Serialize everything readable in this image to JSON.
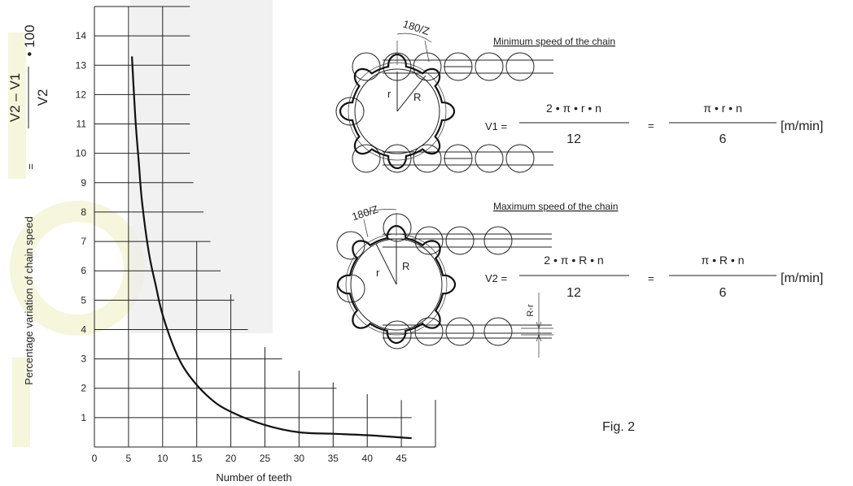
{
  "chart_data": {
    "type": "line",
    "xlabel": "Number of teeth",
    "ylabel": "Percentage variation of chain speed",
    "x_ticks": [
      0,
      5,
      10,
      15,
      20,
      25,
      30,
      35,
      40,
      45
    ],
    "y_ticks": [
      1,
      2,
      3,
      4,
      5,
      6,
      7,
      8,
      9,
      10,
      11,
      13,
      14
    ],
    "y_tick_labels_present": [
      1,
      2,
      3,
      4,
      5,
      6,
      7,
      8,
      9,
      10,
      11,
      12,
      13,
      14
    ],
    "xlim": [
      0,
      50
    ],
    "ylim": [
      0,
      15
    ],
    "grid": true,
    "series": [
      {
        "x": [
          5.5,
          6,
          6.5,
          7,
          8,
          9,
          10,
          12,
          14,
          17,
          20,
          25,
          30,
          35,
          40,
          46.5
        ],
        "y": [
          13.3,
          11.2,
          9.7,
          8.3,
          6.6,
          5.5,
          4.5,
          3.2,
          2.4,
          1.65,
          1.2,
          0.75,
          0.5,
          0.45,
          0.4,
          0.3
        ]
      }
    ]
  },
  "ylabel_formula": {
    "numerator": "V2  –  V1",
    "denominator": "V2",
    "multiplier": "• 100",
    "equals": "="
  },
  "diagram_min": {
    "title": "Minimum speed of the chain",
    "angle_label": "180/Z",
    "label_r": "r",
    "label_R": "R",
    "formula_lhs": "V1 =",
    "num1": "2 • π • r • n",
    "den1": "12",
    "eq": "=",
    "num2": "π • r • n",
    "den2": "6",
    "unit": "[m/min]"
  },
  "diagram_max": {
    "title": "Maximum speed of the chain",
    "angle_label": "180/Z",
    "label_r": "r",
    "label_R": "R",
    "formula_lhs": "V2 =",
    "num1": "2 • π • R • n",
    "den1": "12",
    "eq": "=",
    "num2": "π • R • n",
    "den2": "6",
    "unit": "[m/min]",
    "dim_label": "R-r"
  },
  "figure_caption": "Fig. 2",
  "colors": {
    "watermark": "#f5f6dc",
    "shade": "#ececec",
    "ink": "#222222"
  }
}
